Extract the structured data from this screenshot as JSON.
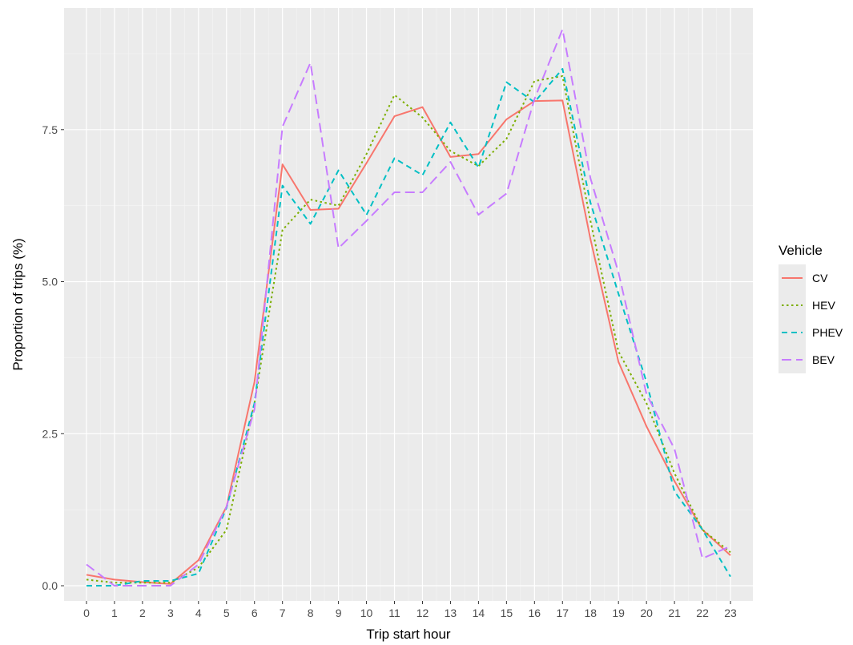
{
  "chart_data": {
    "type": "line",
    "xlabel": "Trip start hour",
    "ylabel": "Proportion of trips (%)",
    "x": [
      0,
      1,
      2,
      3,
      4,
      5,
      6,
      7,
      8,
      9,
      10,
      11,
      12,
      13,
      14,
      15,
      16,
      17,
      18,
      19,
      20,
      21,
      22,
      23
    ],
    "xlim": [
      -0.8,
      23.8
    ],
    "ylim": [
      -0.25,
      9.5
    ],
    "yticks": [
      0.0,
      2.5,
      5.0,
      7.5
    ],
    "ytick_labels": [
      "0.0",
      "2.5",
      "5.0",
      "7.5"
    ],
    "grid": true,
    "legend": {
      "title": "Vehicle",
      "position": "right"
    },
    "series": [
      {
        "name": "CV",
        "color": "#F8766D",
        "dash": "solid",
        "values": [
          0.18,
          0.1,
          0.06,
          0.03,
          0.42,
          1.3,
          3.35,
          6.93,
          6.18,
          6.2,
          6.95,
          7.72,
          7.87,
          7.05,
          7.1,
          7.67,
          7.97,
          7.98,
          5.7,
          3.68,
          2.62,
          1.72,
          0.92,
          0.5
        ]
      },
      {
        "name": "HEV",
        "color": "#7CAE00",
        "dash": "dotted",
        "values": [
          0.1,
          0.05,
          0.05,
          0.05,
          0.3,
          0.92,
          3.0,
          5.85,
          6.35,
          6.25,
          7.1,
          8.07,
          7.7,
          7.15,
          6.9,
          7.35,
          8.3,
          8.38,
          6.0,
          3.85,
          3.0,
          1.85,
          0.92,
          0.55
        ]
      },
      {
        "name": "PHEV",
        "color": "#00BFC4",
        "dash": "dashed",
        "values": [
          0.0,
          0.0,
          0.08,
          0.08,
          0.2,
          1.28,
          3.0,
          6.58,
          5.95,
          6.83,
          6.1,
          7.03,
          6.75,
          7.62,
          6.88,
          8.28,
          7.95,
          8.5,
          6.3,
          4.8,
          3.35,
          1.55,
          0.92,
          0.15
        ]
      },
      {
        "name": "BEV",
        "color": "#C77CFF",
        "dash": "longdash",
        "values": [
          0.35,
          0.0,
          0.0,
          0.0,
          0.35,
          1.3,
          2.9,
          7.55,
          8.6,
          5.55,
          6.0,
          6.47,
          6.47,
          6.97,
          6.1,
          6.45,
          8.0,
          9.15,
          6.7,
          5.15,
          3.15,
          2.25,
          0.45,
          0.65
        ]
      }
    ]
  }
}
